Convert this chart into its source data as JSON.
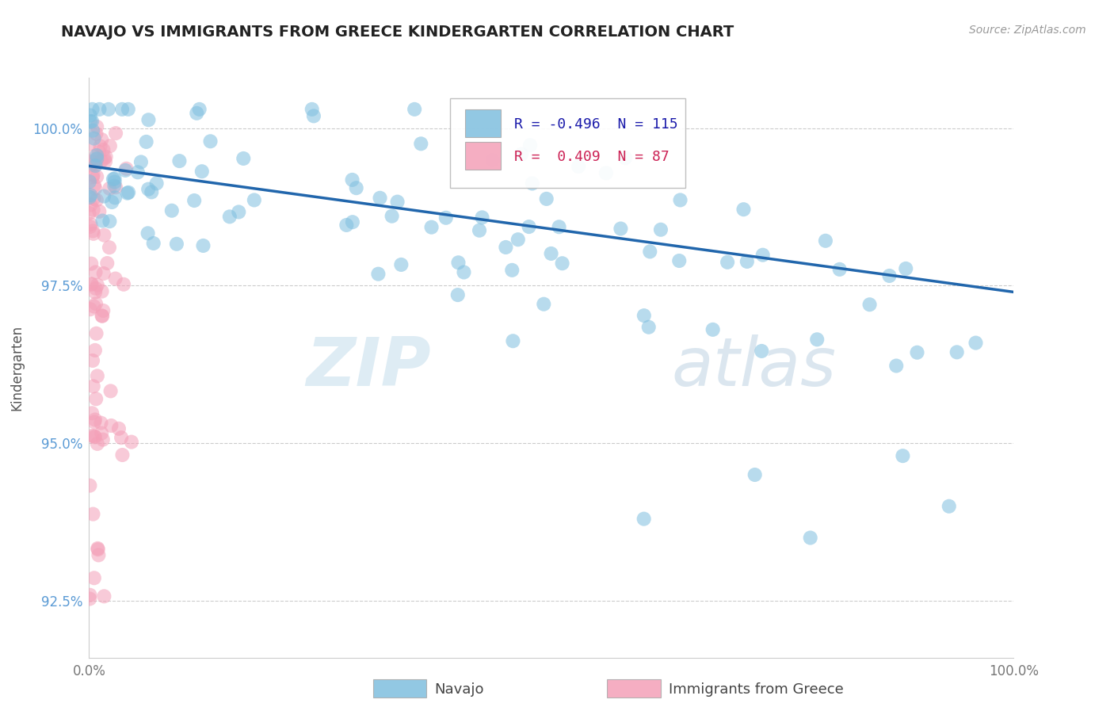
{
  "title": "NAVAJO VS IMMIGRANTS FROM GREECE KINDERGARTEN CORRELATION CHART",
  "source_text": "Source: ZipAtlas.com",
  "xlabel": "",
  "ylabel": "Kindergarten",
  "legend_label_1": "Navajo",
  "legend_label_2": "Immigrants from Greece",
  "color_blue": "#7fbfdf",
  "color_pink": "#f4a0b8",
  "trendline_blue": "#2166ac",
  "R_blue": -0.496,
  "N_blue": 115,
  "R_pink": 0.409,
  "N_pink": 87,
  "xlim": [
    0.0,
    1.0
  ],
  "ylim": [
    0.916,
    1.008
  ],
  "yticks": [
    0.925,
    0.95,
    0.975,
    1.0
  ],
  "ytick_labels": [
    "92.5%",
    "95.0%",
    "97.5%",
    "100.0%"
  ],
  "xtick_labels": [
    "0.0%",
    "100.0%"
  ],
  "watermark_zip": "ZIP",
  "watermark_atlas": "atlas",
  "background_color": "#ffffff",
  "grid_color": "#cccccc",
  "trendline_start_y": 0.994,
  "trendline_end_y": 0.974,
  "blue_scatter_seed": 12,
  "pink_scatter_seed": 7
}
